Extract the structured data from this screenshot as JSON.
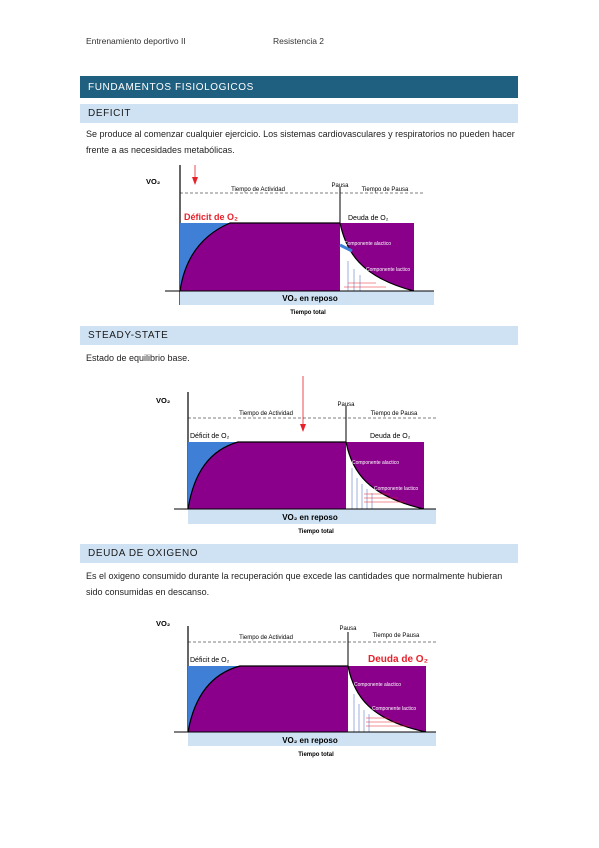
{
  "header": {
    "left": "Entrenamiento deportivo II",
    "right": "Resistencia 2"
  },
  "main_section": "FUNDAMENTOS FISIOLOGICOS",
  "sections": [
    {
      "title": "DEFICIT",
      "text": "Se produce al comenzar cualquier ejercicio. Los sistemas cardiovasculares y respiratorios no pueden hacer frente a as necesidades metabólicas.",
      "chart": {
        "vo2": "VO₂",
        "activity": "Tiempo de Actividad",
        "pause": "Pausa",
        "pause_time": "Tiempo de Pausa",
        "deficit": "Déficit de O₂",
        "debt": "Deuda de O₂",
        "alactic": "Componente alactico",
        "lactic": "Componente lactico",
        "rest": "VO₂ en reposo",
        "total": "Tiempo total"
      }
    },
    {
      "title": "STEADY-STATE",
      "text": "Estado de equilibrio base.",
      "chart": {
        "vo2": "VO₂",
        "activity": "Tiempo de Actividad",
        "pause": "Pausa",
        "pause_time": "Tiempo de Pausa",
        "deficit": "Déficit de O₂",
        "debt": "Deuda de O₂",
        "alactic": "Componente alactico",
        "lactic": "Componente lactico",
        "rest": "VO₂ en reposo",
        "total": "Tiempo total"
      }
    },
    {
      "title": "DEUDA DE OXIGENO",
      "text": "Es el oxigeno consumido durante la recuperación que excede las cantidades que normalmente hubieran sido consumidas en descanso.",
      "chart": {
        "vo2": "VO₂",
        "activity": "Tiempo de Actividad",
        "pause": "Pausa",
        "pause_time": "Tiempo de Pausa",
        "deficit": "Déficit de O₂",
        "debt": "Deuda de O₂",
        "alactic": "Componente alactico",
        "lactic": "Componente lactico",
        "rest": "VO₂ en reposo",
        "total": "Tiempo total"
      }
    }
  ],
  "colors": {
    "header_bar": "#1f5f7f",
    "section_bar": "#cfe2f3",
    "purple": "#8a008a",
    "blue": "#3f7fd6",
    "rest_band": "#cfe2f3",
    "red": "#e8202a"
  }
}
